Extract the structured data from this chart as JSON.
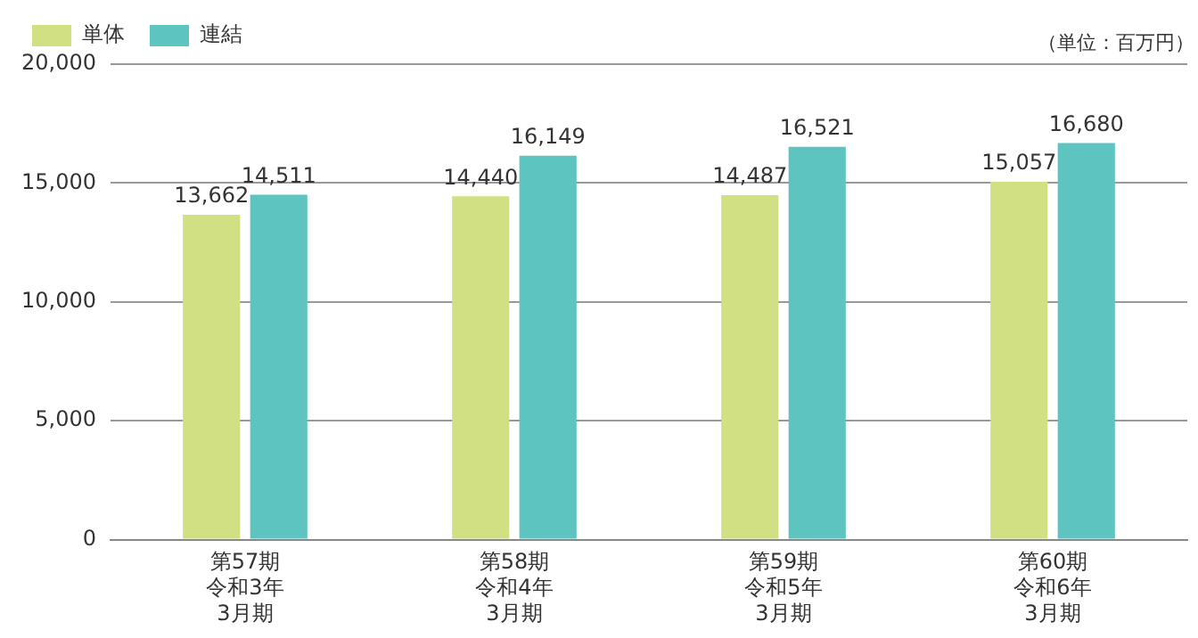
{
  "chart_data": {
    "type": "bar",
    "categories": [
      "第57期令和3年3月期",
      "第58期令和4年3月期",
      "第59期令和5年3月期",
      "第60期令和6年3月期"
    ],
    "series": [
      {
        "name": "単体",
        "color": "#d1e083",
        "values": [
          13662,
          14440,
          14487,
          15057
        ],
        "value_labels": [
          "13,662",
          "14,440",
          "14,487",
          "15,057"
        ]
      },
      {
        "name": "連結",
        "color": "#5ec4bf",
        "values": [
          14511,
          16149,
          16521,
          16680
        ],
        "value_labels": [
          "14,511",
          "16,149",
          "16,521",
          "16,680"
        ]
      }
    ],
    "ylim": [
      0,
      20000
    ],
    "yticks": [
      {
        "value": 0,
        "label": "0"
      },
      {
        "value": 5000,
        "label": "5,000"
      },
      {
        "value": 10000,
        "label": "10,000"
      },
      {
        "value": 15000,
        "label": "15,000"
      },
      {
        "value": 20000,
        "label": "20,000"
      }
    ],
    "grid": "y",
    "legend": "top left",
    "annotations": [
      "（単位：百万円）"
    ]
  }
}
